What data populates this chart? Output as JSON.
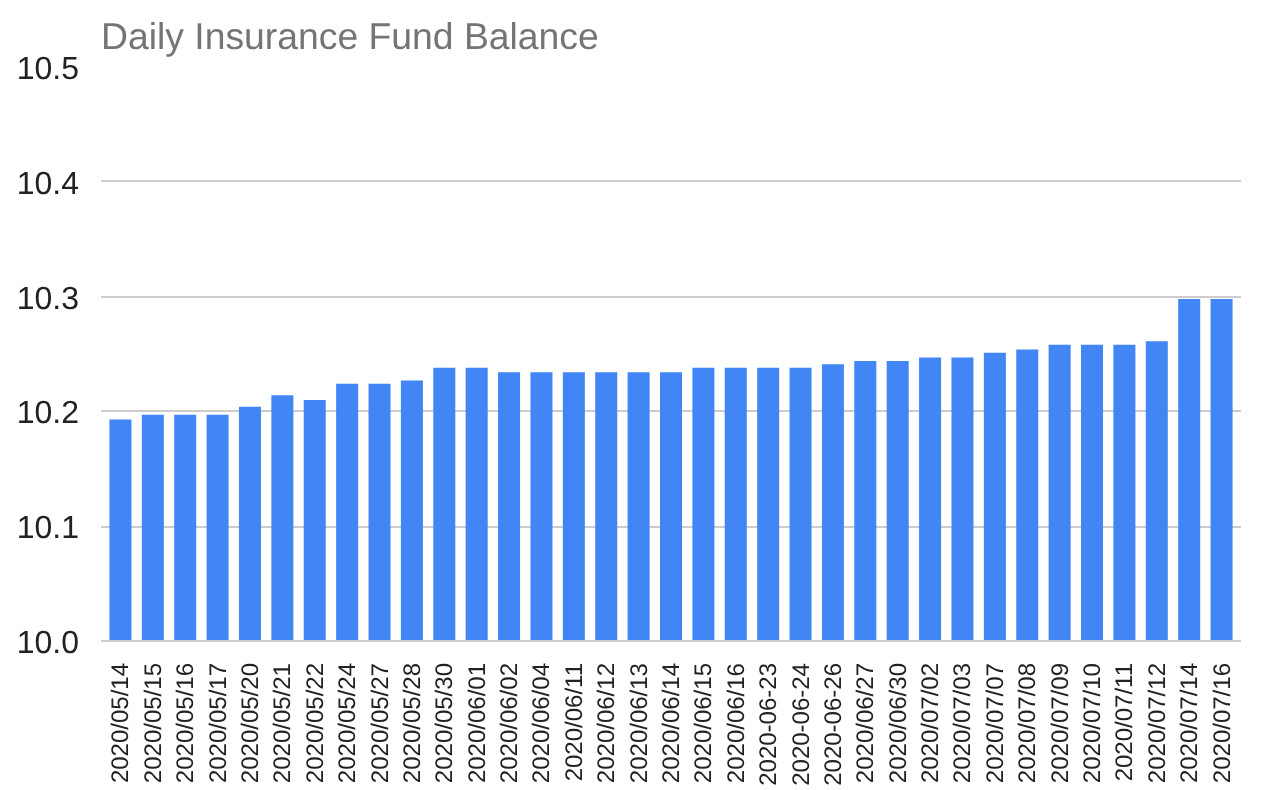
{
  "chart_data": {
    "type": "bar",
    "title": "Daily Insurance Fund Balance",
    "categories": [
      "2020/05/14",
      "2020/05/15",
      "2020/05/16",
      "2020/05/17",
      "2020/05/20",
      "2020/05/21",
      "2020/05/22",
      "2020/05/24",
      "2020/05/27",
      "2020/05/28",
      "2020/05/30",
      "2020/06/01",
      "2020/06/02",
      "2020/06/04",
      "2020/06/11",
      "2020/06/12",
      "2020/06/13",
      "2020/06/14",
      "2020/06/15",
      "2020/06/16",
      "2020-06-23",
      "2020-06-24",
      "2020-06-26",
      "2020/06/27",
      "2020/06/30",
      "2020/07/02",
      "2020/07/03",
      "2020/07/07",
      "2020/07/08",
      "2020/07/09",
      "2020/07/10",
      "2020/07/11",
      "2020/07/12",
      "2020/07/14",
      "2020/07/16"
    ],
    "values": [
      10.193,
      10.197,
      10.197,
      10.197,
      10.204,
      10.214,
      10.21,
      10.224,
      10.224,
      10.227,
      10.238,
      10.238,
      10.234,
      10.234,
      10.234,
      10.234,
      10.234,
      10.234,
      10.238,
      10.238,
      10.238,
      10.238,
      10.241,
      10.244,
      10.244,
      10.247,
      10.247,
      10.251,
      10.254,
      10.258,
      10.258,
      10.258,
      10.261,
      10.298,
      10.298
    ],
    "color": "#4285f4",
    "ylim": [
      10.0,
      10.5
    ],
    "yticks": [
      {
        "value": 10.0,
        "label": "10.0"
      },
      {
        "value": 10.1,
        "label": "10.1"
      },
      {
        "value": 10.2,
        "label": "10.2"
      },
      {
        "value": 10.3,
        "label": "10.3"
      },
      {
        "value": 10.4,
        "label": "10.4"
      },
      {
        "value": 10.5,
        "label": "10.5"
      }
    ],
    "grid": "y"
  }
}
